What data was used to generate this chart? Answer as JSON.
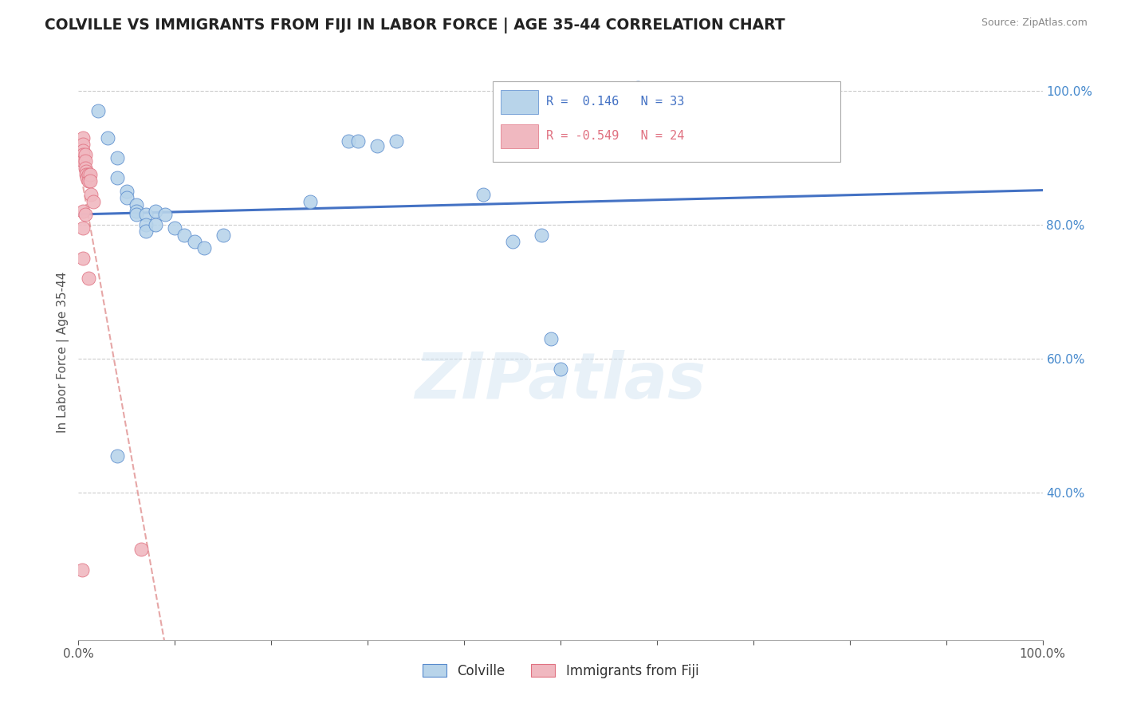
{
  "title": "COLVILLE VS IMMIGRANTS FROM FIJI IN LABOR FORCE | AGE 35-44 CORRELATION CHART",
  "source": "Source: ZipAtlas.com",
  "ylabel": "In Labor Force | Age 35-44",
  "xmin": 0.0,
  "xmax": 1.0,
  "ymin": 0.18,
  "ymax": 1.04,
  "colville_points": [
    [
      0.02,
      0.97
    ],
    [
      0.03,
      0.93
    ],
    [
      0.04,
      0.9
    ],
    [
      0.04,
      0.87
    ],
    [
      0.05,
      0.85
    ],
    [
      0.05,
      0.84
    ],
    [
      0.06,
      0.83
    ],
    [
      0.06,
      0.82
    ],
    [
      0.06,
      0.815
    ],
    [
      0.07,
      0.815
    ],
    [
      0.07,
      0.8
    ],
    [
      0.07,
      0.79
    ],
    [
      0.08,
      0.82
    ],
    [
      0.08,
      0.8
    ],
    [
      0.09,
      0.815
    ],
    [
      0.1,
      0.795
    ],
    [
      0.11,
      0.785
    ],
    [
      0.12,
      0.775
    ],
    [
      0.13,
      0.765
    ],
    [
      0.15,
      0.785
    ],
    [
      0.24,
      0.835
    ],
    [
      0.28,
      0.925
    ],
    [
      0.29,
      0.925
    ],
    [
      0.31,
      0.918
    ],
    [
      0.33,
      0.925
    ],
    [
      0.42,
      0.845
    ],
    [
      0.45,
      0.775
    ],
    [
      0.48,
      0.785
    ],
    [
      0.49,
      0.63
    ],
    [
      0.5,
      0.585
    ],
    [
      0.58,
      1.005
    ],
    [
      0.6,
      0.965
    ],
    [
      0.04,
      0.455
    ]
  ],
  "fiji_points": [
    [
      0.005,
      0.93
    ],
    [
      0.005,
      0.92
    ],
    [
      0.005,
      0.91
    ],
    [
      0.005,
      0.905
    ],
    [
      0.005,
      0.895
    ],
    [
      0.007,
      0.905
    ],
    [
      0.007,
      0.895
    ],
    [
      0.007,
      0.885
    ],
    [
      0.008,
      0.88
    ],
    [
      0.008,
      0.875
    ],
    [
      0.009,
      0.87
    ],
    [
      0.01,
      0.875
    ],
    [
      0.01,
      0.865
    ],
    [
      0.012,
      0.875
    ],
    [
      0.012,
      0.865
    ],
    [
      0.013,
      0.845
    ],
    [
      0.015,
      0.835
    ],
    [
      0.005,
      0.82
    ],
    [
      0.007,
      0.815
    ],
    [
      0.005,
      0.795
    ],
    [
      0.005,
      0.75
    ],
    [
      0.01,
      0.72
    ],
    [
      0.004,
      0.285
    ],
    [
      0.065,
      0.315
    ]
  ],
  "colville_R": 0.146,
  "colville_N": 33,
  "fiji_R": -0.549,
  "fiji_N": 24,
  "colville_color": "#b8d4ea",
  "colville_edge_color": "#5588cc",
  "fiji_color": "#f0b8c0",
  "fiji_edge_color": "#e07080",
  "fiji_line_color": "#e09090",
  "colville_line_color": "#4472c4",
  "watermark_text": "ZIPatlas",
  "yticks": [
    0.4,
    0.6,
    0.8,
    1.0
  ],
  "ytick_labels": [
    "40.0%",
    "60.0%",
    "80.0%",
    "100.0%"
  ],
  "xticks": [
    0.0,
    0.1,
    0.2,
    0.3,
    0.4,
    0.5,
    0.6,
    0.7,
    0.8,
    0.9,
    1.0
  ],
  "xtick_labels": [
    "0.0%",
    "",
    "",
    "",
    "",
    "",
    "",
    "",
    "",
    "",
    "100.0%"
  ]
}
